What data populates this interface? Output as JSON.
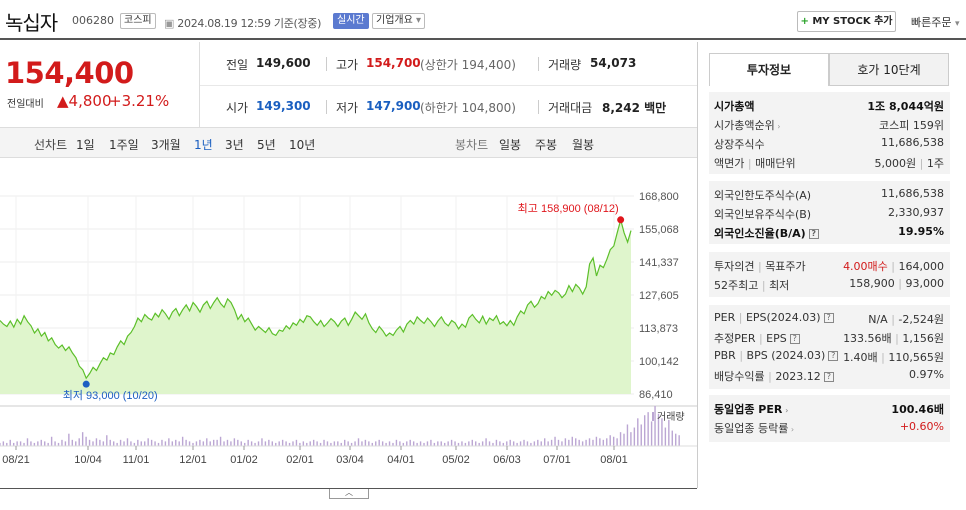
{
  "header": {
    "stock_name": "녹십자",
    "stock_code": "006280",
    "market": "코스피",
    "datetime": "2024.08.19 12:59 기준(장중)",
    "realtime_badge": "실시간",
    "corp_overview": "기업개요",
    "mystock_label": "MY STOCK 추가",
    "quick_order": "빠른주문"
  },
  "price": {
    "current": "154,400",
    "change_label": "전일대비",
    "change_value": "4,800",
    "change_pct": "+3.21%"
  },
  "quote": {
    "prev_close_label": "전일",
    "prev_close": "149,600",
    "high_label": "고가",
    "high": "154,700",
    "upper_limit": "(상한가 194,400)",
    "volume_label": "거래량",
    "volume": "54,073",
    "open_label": "시가",
    "open": "149,300",
    "low_label": "저가",
    "low": "147,900",
    "lower_limit": "(하한가 104,800)",
    "amount_label": "거래대금",
    "amount": "8,242 백만"
  },
  "period_bar": {
    "line_chart_label": "선차트",
    "periods": [
      "1일",
      "1주일",
      "3개월",
      "1년",
      "3년",
      "5년",
      "10년"
    ],
    "active_period": "1년",
    "candle_label": "봉차트",
    "candles": [
      "일봉",
      "주봉",
      "월봉"
    ]
  },
  "chart_data": {
    "type": "area",
    "y_ticks": [
      "168,800",
      "155,068",
      "141,337",
      "127,605",
      "113,873",
      "100,142",
      "86,410"
    ],
    "ylim": [
      86410,
      168800
    ],
    "x_ticks": [
      "08/21",
      "10/04",
      "11/01",
      "12/01",
      "01/02",
      "02/01",
      "03/04",
      "04/01",
      "05/02",
      "06/03",
      "07/01",
      "08/01"
    ],
    "max_label": "최고 158,900 (08/12)",
    "min_label": "최저 93,000 (10/20)",
    "volume_legend": "거래량",
    "colors": {
      "line": "#5cbf2a",
      "fill": "#dff5cc",
      "max": "#e0161c",
      "min": "#1e5fc2",
      "volume": "#bba6d3"
    },
    "series": [
      {
        "values": [
          117000,
          115500,
          114500,
          116800,
          114200,
          117500,
          115500,
          119000,
          116500,
          114800,
          111800,
          113500,
          110500,
          112000,
          108500,
          109800,
          107000,
          105500,
          106800,
          104500,
          106000,
          103500,
          101500,
          98000,
          96500,
          93000,
          95000,
          97500,
          96200,
          99000,
          101500,
          100500,
          103500,
          102800,
          106000,
          108500,
          107000,
          110500,
          112000,
          114500,
          118000,
          116500,
          119500,
          118000,
          117200,
          120000,
          118500,
          121500,
          119800,
          117500,
          120500,
          122000,
          119000,
          121500,
          123500,
          121000,
          124500,
          122800,
          120500,
          123500,
          125000,
          122000,
          124500,
          126500,
          124000,
          122500,
          126000,
          124500,
          121500,
          117500,
          119500,
          116500,
          118000,
          115500,
          113000,
          114500,
          113200,
          112000,
          114000,
          111500,
          110800,
          113000,
          112500,
          114800,
          113500,
          116000,
          115000,
          117500,
          116200,
          119000,
          118500,
          116500,
          115000,
          117000,
          114500,
          116000,
          117800,
          116500,
          114500,
          116800,
          118000,
          115000,
          117500,
          120500,
          119000,
          117500,
          119800,
          116000,
          113500,
          112000,
          114500,
          112800,
          110500,
          111800,
          110800,
          113000,
          114500,
          112200,
          115500,
          117000,
          115500,
          118500,
          117000,
          115800,
          118000,
          116500,
          114500,
          116800,
          118500,
          116000,
          114800,
          117000,
          116000,
          113500,
          115500,
          114200,
          118000,
          119500,
          117500,
          116000,
          118800,
          115500,
          118000,
          117000,
          119000,
          115500,
          116500,
          114800,
          117000,
          115000,
          118500,
          121000,
          119800,
          123500,
          125000,
          122500,
          124000,
          127000,
          126000,
          129000,
          127500,
          129500,
          128500,
          126500,
          128000,
          131500,
          129000,
          132000,
          130500,
          128000,
          131000,
          140500,
          143000,
          135500,
          140000,
          139000,
          142500,
          146500,
          148000,
          153500,
          158900,
          153500,
          149600,
          154400
        ]
      }
    ],
    "volume": [
      2,
      3,
      2,
      4,
      2,
      3,
      3,
      2,
      5,
      3,
      2,
      3,
      4,
      3,
      2,
      6,
      3,
      2,
      4,
      3,
      8,
      4,
      3,
      5,
      9,
      6,
      4,
      3,
      5,
      4,
      3,
      7,
      4,
      3,
      2,
      4,
      3,
      5,
      3,
      2,
      4,
      3,
      3,
      5,
      4,
      3,
      2,
      4,
      3,
      5,
      3,
      4,
      3,
      6,
      4,
      3,
      2,
      3,
      4,
      3,
      5,
      3,
      4,
      4,
      6,
      3,
      4,
      3,
      5,
      4,
      3,
      2,
      4,
      3,
      2,
      3,
      5,
      3,
      4,
      3,
      2,
      3,
      4,
      3,
      2,
      3,
      4,
      2,
      3,
      2,
      3,
      4,
      3,
      2,
      4,
      3,
      2,
      3,
      3,
      2,
      4,
      3,
      2,
      3,
      5,
      3,
      4,
      3,
      2,
      3,
      4,
      3,
      2,
      3,
      2,
      4,
      3,
      2,
      3,
      4,
      3,
      2,
      3,
      2,
      3,
      4,
      2,
      3,
      3,
      2,
      3,
      4,
      3,
      2,
      3,
      2,
      3,
      4,
      3,
      2,
      3,
      5,
      3,
      2,
      4,
      3,
      2,
      3,
      4,
      3,
      2,
      3,
      4,
      3,
      2,
      3,
      4,
      3,
      5,
      3,
      4,
      6,
      4,
      3,
      5,
      4,
      6,
      5,
      4,
      3,
      4,
      5,
      4,
      6,
      5,
      4,
      5,
      7,
      6,
      5,
      9,
      8,
      14,
      9,
      12,
      18,
      14,
      20,
      22,
      16,
      26,
      21,
      18,
      12,
      17,
      10,
      8,
      7
    ]
  },
  "right_panel": {
    "tabs": [
      "투자정보",
      "호가 10단계"
    ],
    "group1": [
      {
        "k": "시가총액",
        "v": "1조 8,044억원",
        "bold": true
      },
      {
        "k": "시가총액순위",
        "v": "코스피 159위",
        "arrow": true
      },
      {
        "k": "상장주식수",
        "v": "11,686,538"
      },
      {
        "k": "액면가 | 매매단위",
        "v": "5,000원 | 1주"
      }
    ],
    "group2": [
      {
        "k": "외국인한도주식수(A)",
        "v": "11,686,538"
      },
      {
        "k": "외국인보유주식수(B)",
        "v": "2,330,937"
      },
      {
        "k": "외국인소진율(B/A)",
        "v": "19.95%",
        "bold": true,
        "qm": true
      }
    ],
    "group3": [
      {
        "k": "투자의견 | 목표주가",
        "v": "4.00매수 | 164,000",
        "v_red": "4.00매수"
      },
      {
        "k": "52주최고 | 최저",
        "v": "158,900 | 93,000"
      }
    ],
    "group4": [
      {
        "k": "PER | EPS(2024.03)",
        "v": "N/A | -2,524원",
        "qm": true
      },
      {
        "k": "추정PER | EPS",
        "v": "133.56배 | 1,156원",
        "qm": true
      },
      {
        "k": "PBR | BPS (2024.03)",
        "v": "1.40배 | 110,565원",
        "qm": true
      },
      {
        "k": "배당수익률 | 2023.12",
        "v": "0.97%",
        "qm": true
      }
    ],
    "group5": [
      {
        "k": "동일업종 PER",
        "v": "100.46배",
        "bold": true,
        "arrow": true
      },
      {
        "k": "동일업종 등락률",
        "v": "+0.60%",
        "red": true,
        "arrow": true
      }
    ]
  }
}
